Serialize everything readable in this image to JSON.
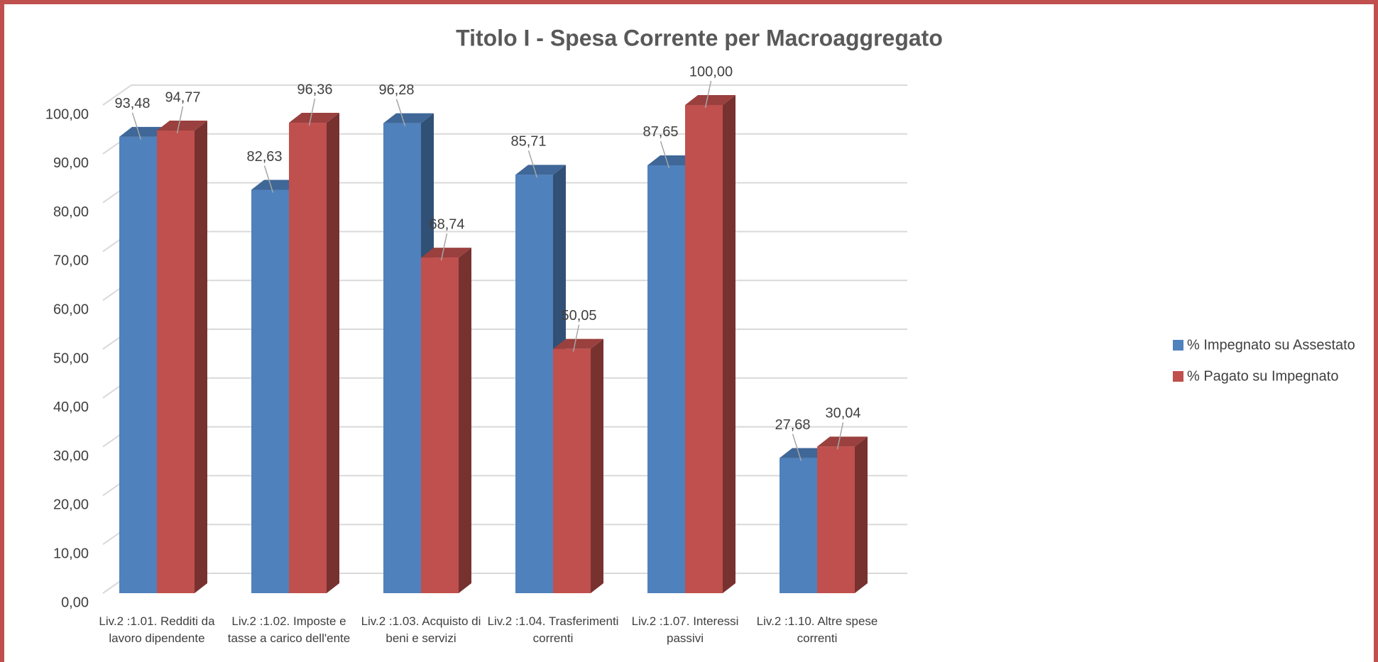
{
  "chart_data": {
    "type": "bar3d",
    "title": "Titolo I - Spesa Corrente per Macroaggregato",
    "categories": [
      "Liv.2 :1.01. Redditi da lavoro dipendente",
      "Liv.2 :1.02. Imposte e tasse a carico dell'ente",
      "Liv.2 :1.03. Acquisto di beni e servizi",
      "Liv.2 :1.04. Trasferimenti correnti",
      "Liv.2 :1.07. Interessi passivi",
      "Liv.2 :1.10. Altre spese correnti"
    ],
    "series": [
      {
        "name": "% Impegnato su Assestato",
        "color": "#4f81bd",
        "values": [
          93.48,
          82.63,
          96.28,
          85.71,
          87.65,
          27.68
        ],
        "value_labels": [
          "93,48",
          "82,63",
          "96,28",
          "85,71",
          "87,65",
          "27,68"
        ]
      },
      {
        "name": "% Pagato su Impegnato",
        "color": "#c0504d",
        "values": [
          94.77,
          96.36,
          68.74,
          50.05,
          100.0,
          30.04
        ],
        "value_labels": [
          "94,77",
          "96,36",
          "68,74",
          "50,05",
          "100,00",
          "30,04"
        ]
      }
    ],
    "ylim": [
      0,
      100
    ],
    "yticks": [
      {
        "value": 0,
        "label": "0,00"
      },
      {
        "value": 10,
        "label": "10,00"
      },
      {
        "value": 20,
        "label": "20,00"
      },
      {
        "value": 30,
        "label": "30,00"
      },
      {
        "value": 40,
        "label": "40,00"
      },
      {
        "value": 50,
        "label": "50,00"
      },
      {
        "value": 60,
        "label": "60,00"
      },
      {
        "value": 70,
        "label": "70,00"
      },
      {
        "value": 80,
        "label": "80,00"
      },
      {
        "value": 90,
        "label": "90,00"
      },
      {
        "value": 100,
        "label": "100,00"
      }
    ],
    "grid": true,
    "legend": "right"
  }
}
